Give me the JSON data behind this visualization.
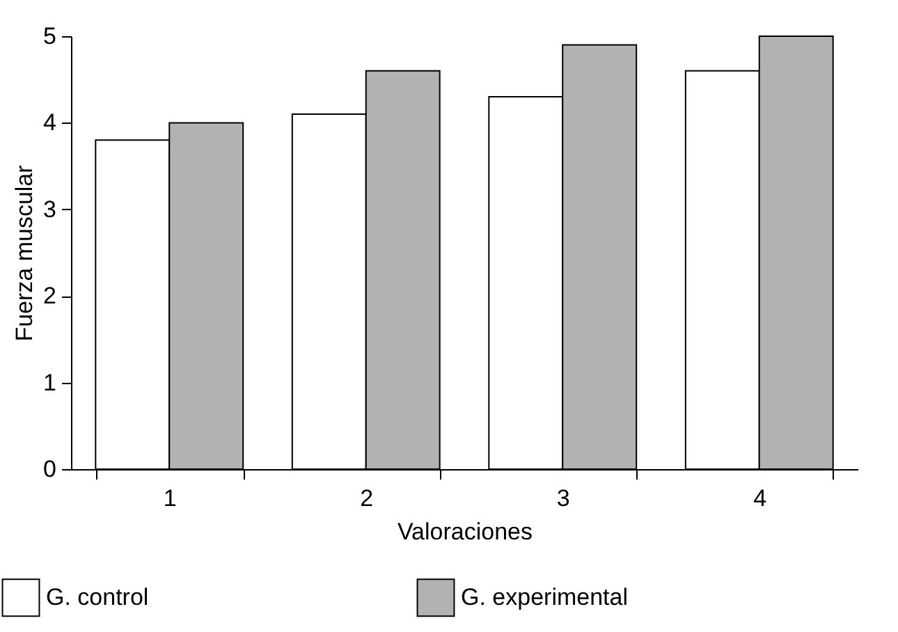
{
  "chart_data": {
    "type": "bar",
    "xlabel": "Valoraciones",
    "ylabel": "Fuerza muscular",
    "categories": [
      "1",
      "2",
      "3",
      "4"
    ],
    "series": [
      {
        "name": "G. control",
        "color": "#ffffff",
        "values": [
          3.8,
          4.1,
          4.3,
          4.6
        ]
      },
      {
        "name": "G. experimental",
        "color": "#b2b2b2",
        "values": [
          4.0,
          4.6,
          4.9,
          5.0
        ]
      }
    ],
    "ylim": [
      0,
      5
    ],
    "yticks": [
      0,
      1,
      2,
      3,
      4,
      5
    ],
    "legend": "bottom"
  }
}
